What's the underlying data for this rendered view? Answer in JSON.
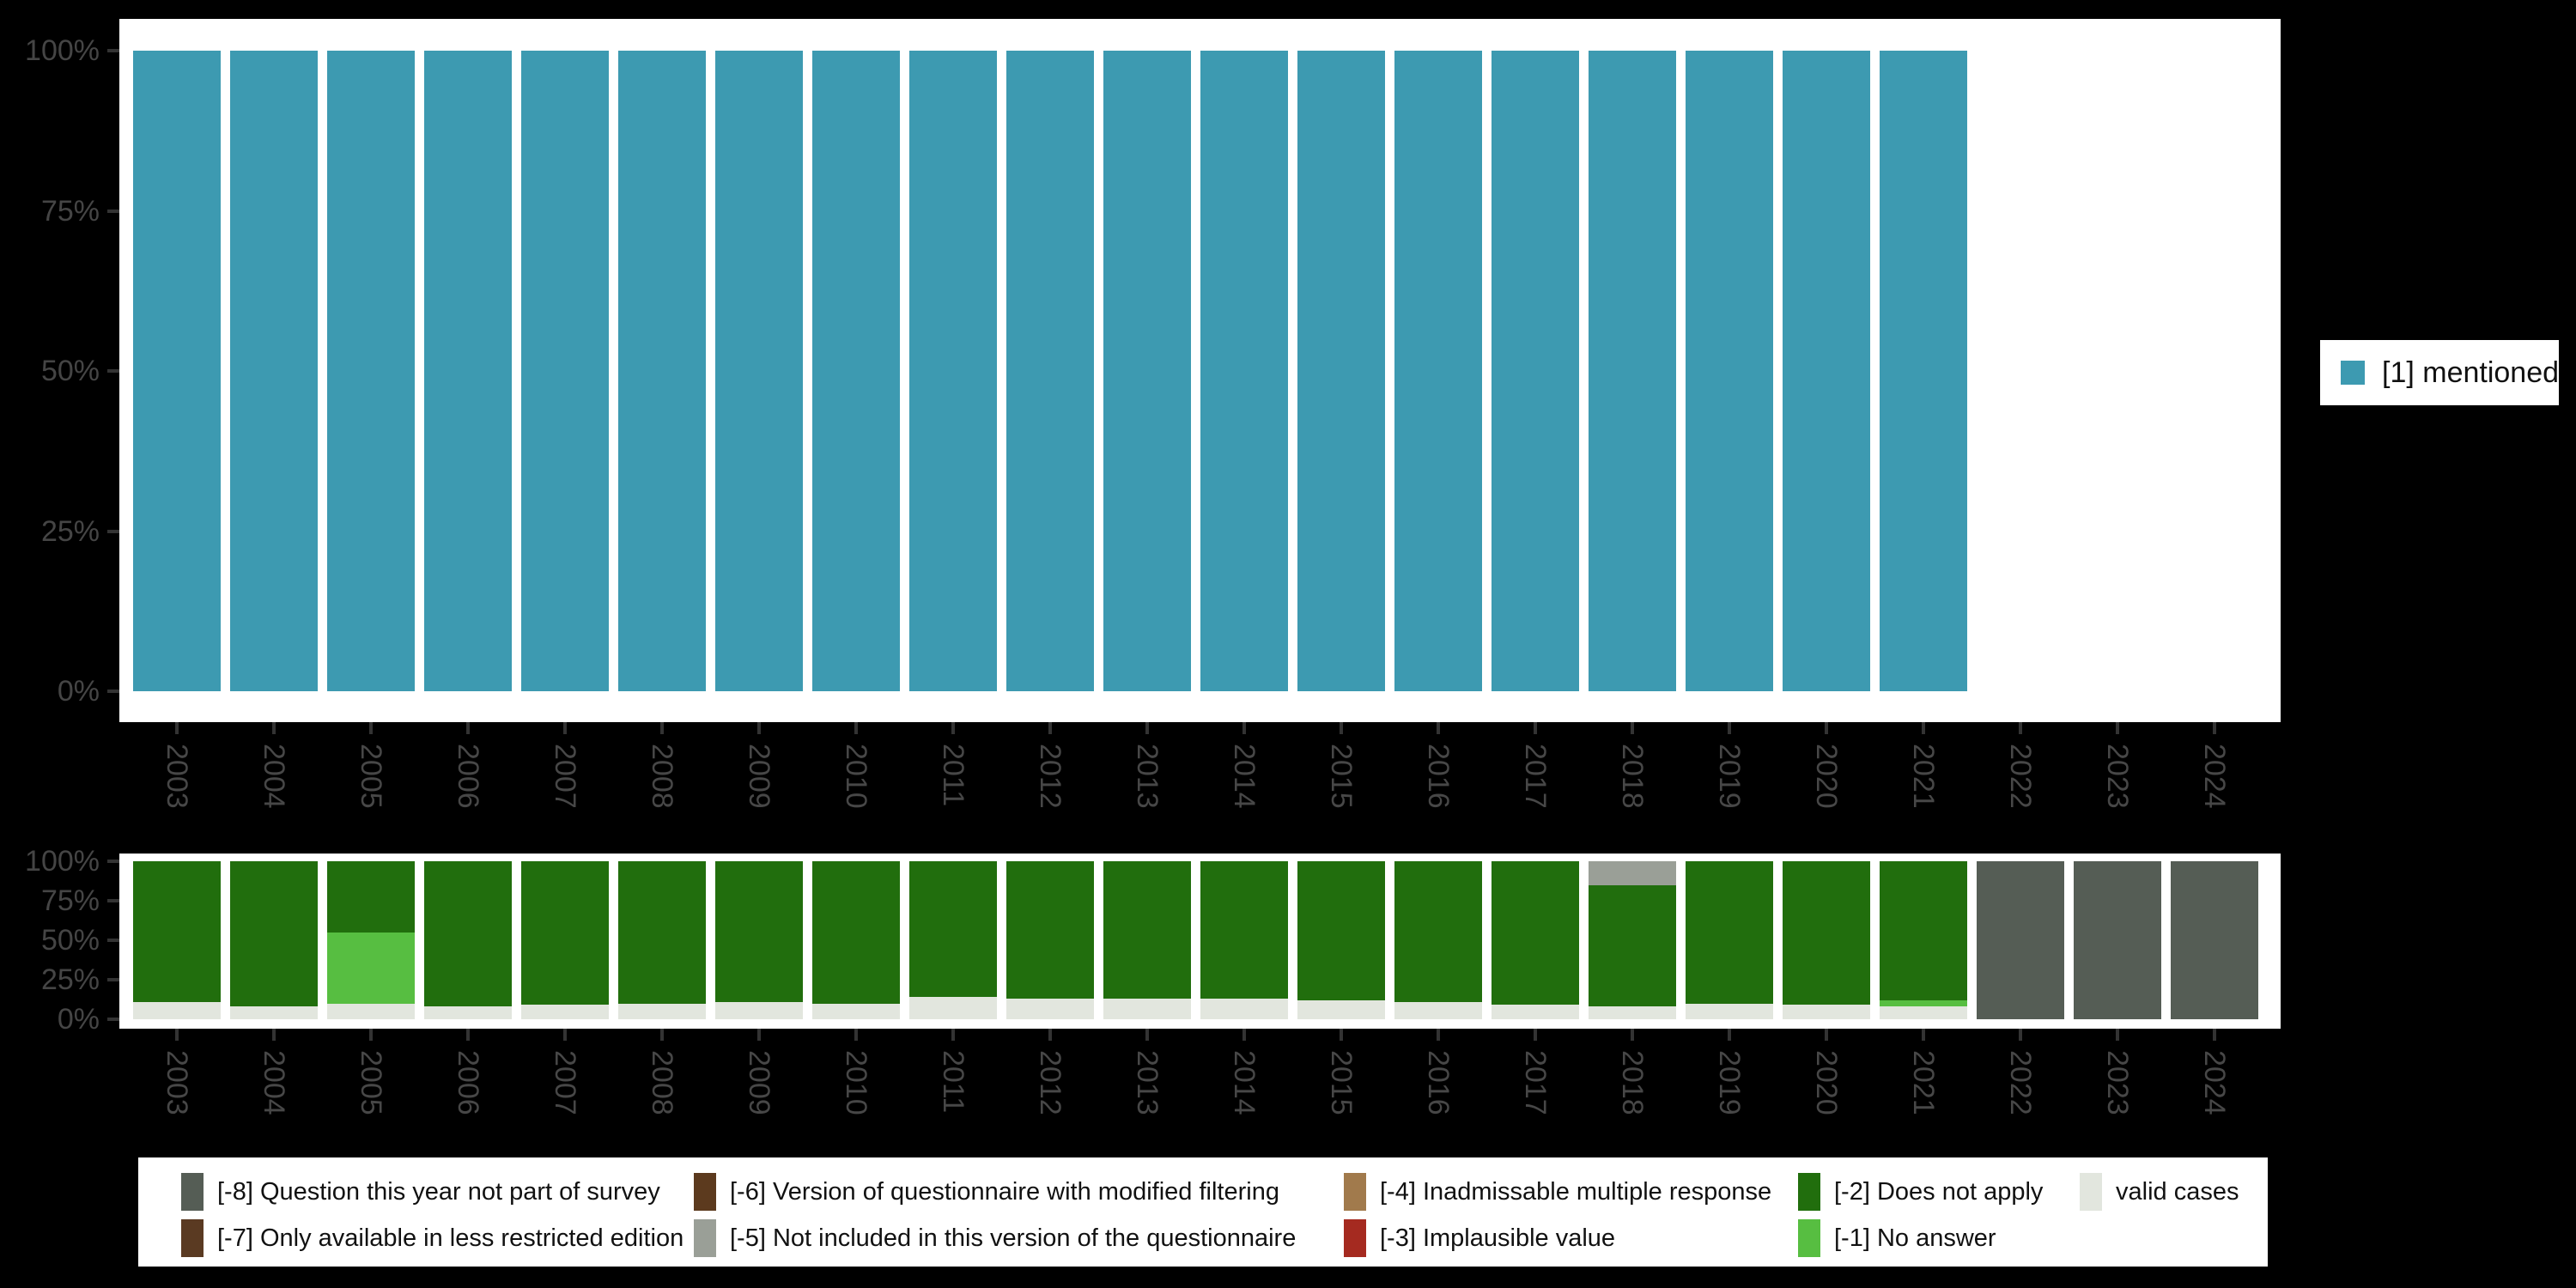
{
  "canvas": {
    "background": "#000000",
    "panel_background": "#ffffff"
  },
  "colors": {
    "mentioned": "#3D9AB1",
    "not_part_of_survey": "#555D55",
    "less_restricted": "#5A3A22",
    "modified_filtering": "#5C3A1E",
    "not_included_version": "#9A9F97",
    "inadmissable_multiple": "#A17A4C",
    "implausible": "#A52A20",
    "does_not_apply": "#216E0D",
    "no_answer": "#57BE41",
    "valid_cases": "#E2E6DE",
    "axis_text": "#454545",
    "tick_mark": "#333333"
  },
  "years": [
    "2003",
    "2004",
    "2005",
    "2006",
    "2007",
    "2008",
    "2009",
    "2010",
    "2011",
    "2012",
    "2013",
    "2014",
    "2015",
    "2016",
    "2017",
    "2018",
    "2019",
    "2020",
    "2021",
    "2022",
    "2023",
    "2024"
  ],
  "y_tick_labels": [
    "100%",
    "75%",
    "50%",
    "25%",
    "0%"
  ],
  "right_legend": {
    "label": "[1] mentioned",
    "color_key": "mentioned"
  },
  "bottom_legend": {
    "entries": [
      {
        "row": 0,
        "col": 0,
        "label": "[-8] Question this year not part of survey",
        "color_key": "not_part_of_survey"
      },
      {
        "row": 1,
        "col": 0,
        "label": "[-7] Only available in less restricted edition",
        "color_key": "less_restricted"
      },
      {
        "row": 0,
        "col": 1,
        "label": "[-6] Version of questionnaire with modified filtering",
        "color_key": "modified_filtering"
      },
      {
        "row": 1,
        "col": 1,
        "label": "[-5] Not included in this version of the questionnaire",
        "color_key": "not_included_version"
      },
      {
        "row": 0,
        "col": 2,
        "label": "[-4] Inadmissable multiple response",
        "color_key": "inadmissable_multiple"
      },
      {
        "row": 1,
        "col": 2,
        "label": "[-3] Implausible value",
        "color_key": "implausible"
      },
      {
        "row": 0,
        "col": 3,
        "label": "[-2] Does not apply",
        "color_key": "does_not_apply"
      },
      {
        "row": 1,
        "col": 3,
        "label": "[-1] No answer",
        "color_key": "no_answer"
      },
      {
        "row": 0,
        "col": 4,
        "label": "valid cases",
        "color_key": "valid_cases"
      }
    ]
  },
  "chart_data": [
    {
      "type": "bar",
      "title": "",
      "categories": [
        "2003",
        "2004",
        "2005",
        "2006",
        "2007",
        "2008",
        "2009",
        "2010",
        "2011",
        "2012",
        "2013",
        "2014",
        "2015",
        "2016",
        "2017",
        "2018",
        "2019",
        "2020",
        "2021",
        "2022",
        "2023",
        "2024"
      ],
      "series": [
        {
          "name": "[1] mentioned",
          "color_key": "mentioned",
          "values": [
            100,
            100,
            100,
            100,
            100,
            100,
            100,
            100,
            100,
            100,
            100,
            100,
            100,
            100,
            100,
            100,
            100,
            100,
            100,
            null,
            null,
            null
          ]
        }
      ],
      "ylabel": "",
      "xlabel": "",
      "ylim": [
        0,
        100
      ],
      "ytick_labels": [
        "0%",
        "25%",
        "50%",
        "75%",
        "100%"
      ],
      "legend_position": "right",
      "grid": false
    },
    {
      "type": "bar",
      "stacked": true,
      "title": "",
      "categories": [
        "2003",
        "2004",
        "2005",
        "2006",
        "2007",
        "2008",
        "2009",
        "2010",
        "2011",
        "2012",
        "2013",
        "2014",
        "2015",
        "2016",
        "2017",
        "2018",
        "2019",
        "2020",
        "2021",
        "2022",
        "2023",
        "2024"
      ],
      "stack_order_top_to_bottom": [
        "not_included_version",
        "not_part_of_survey",
        "does_not_apply",
        "no_answer",
        "valid_cases"
      ],
      "series": [
        {
          "name": "[-5] Not included in this version of the questionnaire",
          "color_key": "not_included_version",
          "values": [
            0,
            0,
            0,
            0,
            0,
            0,
            0,
            0,
            0,
            0,
            0,
            0,
            0,
            0,
            0,
            15,
            0,
            0,
            0,
            0,
            0,
            0
          ]
        },
        {
          "name": "[-8] Question this year not part of survey",
          "color_key": "not_part_of_survey",
          "values": [
            0,
            0,
            0,
            0,
            0,
            0,
            0,
            0,
            0,
            0,
            0,
            0,
            0,
            0,
            0,
            0,
            0,
            0,
            0,
            100,
            100,
            100
          ]
        },
        {
          "name": "[-2] Does not apply",
          "color_key": "does_not_apply",
          "values": [
            89,
            92,
            45,
            92,
            91,
            90,
            89,
            90,
            86,
            87,
            87,
            87,
            88,
            89,
            91,
            77,
            90,
            91,
            88,
            0,
            0,
            0
          ]
        },
        {
          "name": "[-1] No answer",
          "color_key": "no_answer",
          "values": [
            0,
            0,
            45,
            0,
            0,
            0,
            0,
            0,
            0,
            0,
            0,
            0,
            0,
            0,
            0,
            0,
            0,
            0,
            4,
            0,
            0,
            0
          ]
        },
        {
          "name": "valid cases",
          "color_key": "valid_cases",
          "values": [
            11,
            8,
            10,
            8,
            9,
            10,
            11,
            10,
            14,
            13,
            13,
            13,
            12,
            11,
            9,
            8,
            10,
            9,
            8,
            0,
            0,
            0
          ]
        }
      ],
      "ylabel": "",
      "xlabel": "",
      "ylim": [
        0,
        100
      ],
      "ytick_labels": [
        "0%",
        "25%",
        "50%",
        "75%",
        "100%"
      ],
      "legend_position": "bottom",
      "grid": false
    }
  ]
}
